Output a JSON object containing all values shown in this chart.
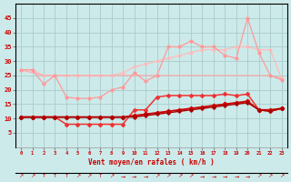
{
  "x": [
    0,
    1,
    2,
    3,
    4,
    5,
    6,
    7,
    8,
    9,
    10,
    11,
    12,
    13,
    14,
    15,
    16,
    17,
    18,
    19,
    20,
    21,
    22,
    23
  ],
  "line_straight1": [
    10.5,
    10.5,
    10.5,
    10.5,
    10.5,
    10.5,
    10.5,
    10.5,
    10.5,
    10.5,
    11,
    11.5,
    12,
    12.5,
    13,
    13.5,
    14,
    14.5,
    15,
    15.5,
    16,
    13,
    13,
    13.5
  ],
  "line_straight2": [
    10.5,
    10.5,
    10.5,
    10.5,
    10.5,
    10.5,
    10.5,
    10.5,
    10.5,
    10.5,
    10.5,
    11,
    11.5,
    12,
    12.5,
    13,
    13.5,
    14,
    14.5,
    15,
    15.5,
    13,
    12.5,
    13.5
  ],
  "line_wavy_dark": [
    10.5,
    10.5,
    10.5,
    10.5,
    8,
    8,
    8,
    8,
    8,
    8,
    13,
    13,
    17.5,
    18,
    18,
    18,
    18,
    18,
    18.5,
    18,
    18.5,
    13,
    12.5,
    13.5
  ],
  "line_pink_flat": [
    27,
    26,
    25,
    25,
    25,
    25,
    25,
    25,
    25,
    25,
    25,
    25,
    25,
    25,
    25,
    25,
    25,
    25,
    25,
    25,
    25,
    25,
    25,
    24
  ],
  "line_pink_wavy": [
    27,
    27,
    22,
    25,
    17.5,
    17,
    17,
    17.5,
    20,
    21,
    26,
    23,
    25,
    35,
    35,
    37,
    35,
    35,
    32,
    31,
    45,
    33,
    25,
    23.5
  ],
  "line_light_straight": [
    27,
    27,
    25,
    25,
    25,
    25,
    25,
    25,
    25,
    26,
    28,
    29,
    30,
    31,
    32,
    33,
    34,
    34,
    34,
    35,
    35,
    34,
    34,
    24
  ],
  "arrows": [
    "↗",
    "↗",
    "↑",
    "↑",
    "↑",
    "↗",
    "↗",
    "↑",
    "↗",
    "→",
    "→",
    "→",
    "↗",
    "↗",
    "↗",
    "↗",
    "→",
    "→",
    "→",
    "→",
    "→",
    "↗",
    "↗",
    "↗"
  ],
  "bg_color": "#cceaea",
  "grid_color": "#aacccc",
  "xlabel": "Vent moyen/en rafales ( km/h )",
  "ylim": [
    0,
    50
  ],
  "xlim": [
    -0.5,
    23.5
  ],
  "yticks": [
    5,
    10,
    15,
    20,
    25,
    30,
    35,
    40,
    45
  ],
  "xticks": [
    0,
    1,
    2,
    3,
    4,
    5,
    6,
    7,
    8,
    9,
    10,
    11,
    12,
    13,
    14,
    15,
    16,
    17,
    18,
    19,
    20,
    21,
    22,
    23
  ]
}
